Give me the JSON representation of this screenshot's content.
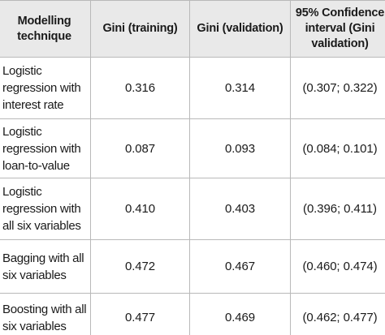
{
  "table": {
    "headers": [
      "Modelling technique",
      "Gini (training)",
      "Gini (validation)",
      "95% Confidence interval (Gini validation)"
    ],
    "rows": [
      {
        "technique": "Logistic regression with interest rate",
        "gini_training": "0.316",
        "gini_validation": "0.314",
        "ci": "(0.307; 0.322)"
      },
      {
        "technique": "Logistic regression with loan-to-value",
        "gini_training": "0.087",
        "gini_validation": "0.093",
        "ci": "(0.084; 0.101)"
      },
      {
        "technique": "Logistic regression with all six variables",
        "gini_training": "0.410",
        "gini_validation": "0.403",
        "ci": "(0.396; 0.411)"
      },
      {
        "technique": "Bagging with all six variables",
        "gini_training": "0.472",
        "gini_validation": "0.467",
        "ci": "(0.460; 0.474)"
      },
      {
        "technique": "Boosting with all six variables",
        "gini_training": "0.477",
        "gini_validation": "0.469",
        "ci": "(0.462; 0.477)"
      }
    ]
  }
}
